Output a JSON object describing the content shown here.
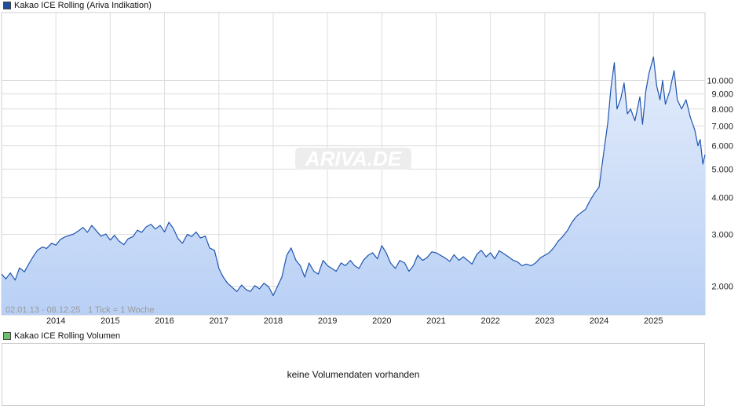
{
  "chart_data": {
    "type": "area",
    "title": "Kakao ICE Rolling (Ariva Indikation)",
    "volume_title": "Kakao ICE Rolling Volumen",
    "volume_message": "keine Volumendaten vorhanden",
    "range_label": "02.01.13 - 06.12.25",
    "interval_label": "1 Tick = 1 Woche",
    "watermark": "ARIVA.DE",
    "y_scale": "log",
    "ylim": [
      1600,
      17000
    ],
    "xlim": [
      2013.0,
      2025.95
    ],
    "y_ticks": [
      {
        "value": 2000,
        "label": "2.000"
      },
      {
        "value": 3000,
        "label": "3.000"
      },
      {
        "value": 4000,
        "label": "4.000"
      },
      {
        "value": 5000,
        "label": "5.000"
      },
      {
        "value": 6000,
        "label": "6.000"
      },
      {
        "value": 7000,
        "label": "7.000"
      },
      {
        "value": 8000,
        "label": "8.000"
      },
      {
        "value": 9000,
        "label": "9.000"
      },
      {
        "value": 10000,
        "label": "10.000"
      }
    ],
    "x_ticks": [
      {
        "value": 2014,
        "label": "2014"
      },
      {
        "value": 2015,
        "label": "2015"
      },
      {
        "value": 2016,
        "label": "2016"
      },
      {
        "value": 2017,
        "label": "2017"
      },
      {
        "value": 2018,
        "label": "2018"
      },
      {
        "value": 2019,
        "label": "2019"
      },
      {
        "value": 2020,
        "label": "2020"
      },
      {
        "value": 2021,
        "label": "2021"
      },
      {
        "value": 2022,
        "label": "2022"
      },
      {
        "value": 2023,
        "label": "2023"
      },
      {
        "value": 2024,
        "label": "2024"
      },
      {
        "value": 2025,
        "label": "2025"
      }
    ],
    "grid": true,
    "legend_placement": "top-left",
    "colors": {
      "line": "#1f55b0",
      "fill_top": "#e3ecfb",
      "fill_bottom": "#b9d0f5",
      "price_swatch": "#1f4e9e",
      "volume_swatch": "#6fbf73",
      "grid": "#dddddd"
    },
    "series": [
      {
        "name": "Kakao ICE Rolling (Ariva Indikation)",
        "points": [
          [
            2013.0,
            2200
          ],
          [
            2013.08,
            2120
          ],
          [
            2013.16,
            2220
          ],
          [
            2013.25,
            2100
          ],
          [
            2013.33,
            2310
          ],
          [
            2013.42,
            2240
          ],
          [
            2013.5,
            2380
          ],
          [
            2013.58,
            2520
          ],
          [
            2013.66,
            2650
          ],
          [
            2013.75,
            2720
          ],
          [
            2013.83,
            2690
          ],
          [
            2013.92,
            2800
          ],
          [
            2014.0,
            2760
          ],
          [
            2014.08,
            2880
          ],
          [
            2014.16,
            2940
          ],
          [
            2014.25,
            2980
          ],
          [
            2014.33,
            3010
          ],
          [
            2014.42,
            3090
          ],
          [
            2014.5,
            3170
          ],
          [
            2014.58,
            3050
          ],
          [
            2014.66,
            3220
          ],
          [
            2014.75,
            3080
          ],
          [
            2014.83,
            2960
          ],
          [
            2014.92,
            3010
          ],
          [
            2015.0,
            2870
          ],
          [
            2015.08,
            2980
          ],
          [
            2015.16,
            2850
          ],
          [
            2015.25,
            2770
          ],
          [
            2015.33,
            2900
          ],
          [
            2015.42,
            2950
          ],
          [
            2015.5,
            3100
          ],
          [
            2015.58,
            3050
          ],
          [
            2015.66,
            3180
          ],
          [
            2015.75,
            3250
          ],
          [
            2015.83,
            3130
          ],
          [
            2015.92,
            3220
          ],
          [
            2016.0,
            3060
          ],
          [
            2016.08,
            3300
          ],
          [
            2016.16,
            3150
          ],
          [
            2016.25,
            2900
          ],
          [
            2016.33,
            2800
          ],
          [
            2016.42,
            3000
          ],
          [
            2016.5,
            2950
          ],
          [
            2016.58,
            3060
          ],
          [
            2016.66,
            2920
          ],
          [
            2016.75,
            2960
          ],
          [
            2016.83,
            2700
          ],
          [
            2016.92,
            2650
          ],
          [
            2017.0,
            2300
          ],
          [
            2017.08,
            2150
          ],
          [
            2017.16,
            2050
          ],
          [
            2017.25,
            1980
          ],
          [
            2017.33,
            1920
          ],
          [
            2017.42,
            2020
          ],
          [
            2017.5,
            1950
          ],
          [
            2017.58,
            1920
          ],
          [
            2017.66,
            2010
          ],
          [
            2017.75,
            1960
          ],
          [
            2017.83,
            2050
          ],
          [
            2017.92,
            1990
          ],
          [
            2018.0,
            1860
          ],
          [
            2018.08,
            2000
          ],
          [
            2018.16,
            2150
          ],
          [
            2018.25,
            2550
          ],
          [
            2018.33,
            2700
          ],
          [
            2018.42,
            2450
          ],
          [
            2018.5,
            2350
          ],
          [
            2018.58,
            2150
          ],
          [
            2018.66,
            2400
          ],
          [
            2018.75,
            2250
          ],
          [
            2018.83,
            2200
          ],
          [
            2018.92,
            2450
          ],
          [
            2019.0,
            2350
          ],
          [
            2019.08,
            2300
          ],
          [
            2019.16,
            2250
          ],
          [
            2019.25,
            2400
          ],
          [
            2019.33,
            2350
          ],
          [
            2019.42,
            2450
          ],
          [
            2019.5,
            2350
          ],
          [
            2019.58,
            2300
          ],
          [
            2019.66,
            2450
          ],
          [
            2019.75,
            2550
          ],
          [
            2019.83,
            2600
          ],
          [
            2019.92,
            2480
          ],
          [
            2020.0,
            2750
          ],
          [
            2020.08,
            2600
          ],
          [
            2020.16,
            2400
          ],
          [
            2020.25,
            2300
          ],
          [
            2020.33,
            2450
          ],
          [
            2020.42,
            2400
          ],
          [
            2020.5,
            2250
          ],
          [
            2020.58,
            2350
          ],
          [
            2020.66,
            2550
          ],
          [
            2020.75,
            2450
          ],
          [
            2020.83,
            2500
          ],
          [
            2020.92,
            2620
          ],
          [
            2021.0,
            2600
          ],
          [
            2021.08,
            2550
          ],
          [
            2021.16,
            2500
          ],
          [
            2021.25,
            2430
          ],
          [
            2021.33,
            2560
          ],
          [
            2021.42,
            2450
          ],
          [
            2021.5,
            2520
          ],
          [
            2021.58,
            2450
          ],
          [
            2021.66,
            2380
          ],
          [
            2021.75,
            2570
          ],
          [
            2021.83,
            2650
          ],
          [
            2021.92,
            2520
          ],
          [
            2022.0,
            2600
          ],
          [
            2022.08,
            2480
          ],
          [
            2022.16,
            2640
          ],
          [
            2022.25,
            2580
          ],
          [
            2022.33,
            2520
          ],
          [
            2022.42,
            2450
          ],
          [
            2022.5,
            2420
          ],
          [
            2022.58,
            2350
          ],
          [
            2022.66,
            2380
          ],
          [
            2022.75,
            2350
          ],
          [
            2022.83,
            2400
          ],
          [
            2022.92,
            2500
          ],
          [
            2023.0,
            2550
          ],
          [
            2023.08,
            2600
          ],
          [
            2023.16,
            2700
          ],
          [
            2023.25,
            2850
          ],
          [
            2023.33,
            2950
          ],
          [
            2023.42,
            3100
          ],
          [
            2023.5,
            3300
          ],
          [
            2023.58,
            3450
          ],
          [
            2023.66,
            3550
          ],
          [
            2023.75,
            3650
          ],
          [
            2023.83,
            3900
          ],
          [
            2023.92,
            4150
          ],
          [
            2024.0,
            4350
          ],
          [
            2024.08,
            5600
          ],
          [
            2024.16,
            7200
          ],
          [
            2024.22,
            9500
          ],
          [
            2024.28,
            11500
          ],
          [
            2024.33,
            8000
          ],
          [
            2024.4,
            8700
          ],
          [
            2024.46,
            9800
          ],
          [
            2024.52,
            7700
          ],
          [
            2024.58,
            8000
          ],
          [
            2024.66,
            7300
          ],
          [
            2024.75,
            8800
          ],
          [
            2024.8,
            7100
          ],
          [
            2024.86,
            9200
          ],
          [
            2024.92,
            10600
          ],
          [
            2025.0,
            12000
          ],
          [
            2025.06,
            9600
          ],
          [
            2025.12,
            8600
          ],
          [
            2025.17,
            10000
          ],
          [
            2025.22,
            8300
          ],
          [
            2025.3,
            9200
          ],
          [
            2025.38,
            10800
          ],
          [
            2025.44,
            8600
          ],
          [
            2025.52,
            8000
          ],
          [
            2025.6,
            8600
          ],
          [
            2025.68,
            7500
          ],
          [
            2025.76,
            6800
          ],
          [
            2025.82,
            6000
          ],
          [
            2025.86,
            6300
          ],
          [
            2025.91,
            5200
          ],
          [
            2025.95,
            5600
          ]
        ]
      }
    ]
  }
}
